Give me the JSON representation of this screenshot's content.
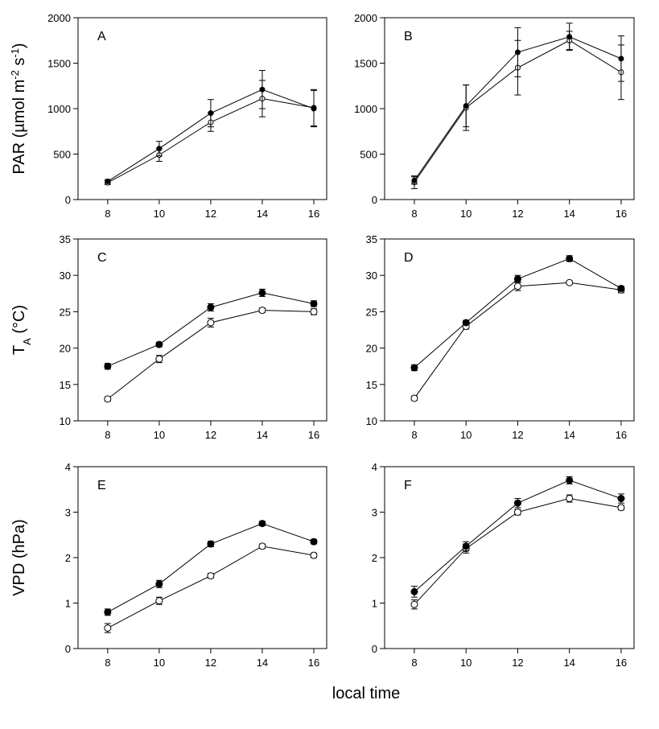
{
  "xlabel": "local time",
  "chart_data": [
    {
      "type": "line",
      "label": "A",
      "ylabel": [
        "PAR (µmol m",
        "-2",
        " s",
        "-1",
        ")"
      ],
      "ylabel_script": "super",
      "x": [
        8,
        10,
        12,
        14,
        16
      ],
      "xlim": [
        6.85,
        16.5
      ],
      "xticks": [
        8,
        10,
        12,
        14,
        16
      ],
      "ylim": [
        0,
        2000
      ],
      "yticks": [
        0,
        500,
        1000,
        1500,
        2000
      ],
      "series": [
        {
          "color": "#000000",
          "marker": "filled",
          "values": [
            200,
            560,
            950,
            1210,
            1000
          ],
          "errors": [
            20,
            80,
            150,
            210,
            200
          ]
        },
        {
          "color": "#000000",
          "marker": "open",
          "values": [
            185,
            490,
            850,
            1110,
            1010
          ],
          "errors": [
            20,
            70,
            100,
            200,
            200
          ]
        }
      ]
    },
    {
      "type": "line",
      "label": "B",
      "x": [
        8,
        10,
        12,
        14,
        16
      ],
      "xlim": [
        6.85,
        16.5
      ],
      "xticks": [
        8,
        10,
        12,
        14,
        16
      ],
      "ylim": [
        0,
        2000
      ],
      "yticks": [
        0,
        500,
        1000,
        1500,
        2000
      ],
      "series": [
        {
          "color": "#000000",
          "marker": "filled",
          "values": [
            210,
            1030,
            1620,
            1790,
            1550
          ],
          "errors": [
            40,
            230,
            270,
            150,
            250
          ]
        },
        {
          "color": "#000000",
          "marker": "open",
          "values": [
            190,
            1010,
            1450,
            1750,
            1400
          ],
          "errors": [
            70,
            250,
            300,
            100,
            300
          ]
        }
      ]
    },
    {
      "type": "line",
      "label": "C",
      "ylabel": [
        "T",
        "A",
        " (°C)"
      ],
      "ylabel_script": "sub",
      "x": [
        8,
        10,
        12,
        14,
        16
      ],
      "xlim": [
        6.85,
        16.5
      ],
      "xticks": [
        8,
        10,
        12,
        14,
        16
      ],
      "ylim": [
        10,
        35
      ],
      "yticks": [
        10,
        15,
        20,
        25,
        30,
        35
      ],
      "series": [
        {
          "color": "#000000",
          "marker": "filled",
          "values": [
            17.5,
            20.5,
            25.6,
            27.6,
            26.1
          ],
          "errors": [
            0.4,
            0.3,
            0.5,
            0.5,
            0.4
          ]
        },
        {
          "color": "#000000",
          "marker": "open",
          "values": [
            13.0,
            18.5,
            23.5,
            25.2,
            25.0
          ],
          "errors": [
            0.3,
            0.5,
            0.6,
            0.3,
            0.4
          ]
        }
      ]
    },
    {
      "type": "line",
      "label": "D",
      "x": [
        8,
        10,
        12,
        14,
        16
      ],
      "xlim": [
        6.85,
        16.5
      ],
      "xticks": [
        8,
        10,
        12,
        14,
        16
      ],
      "ylim": [
        10,
        35
      ],
      "yticks": [
        10,
        15,
        20,
        25,
        30,
        35
      ],
      "series": [
        {
          "color": "#000000",
          "marker": "filled",
          "values": [
            17.3,
            23.5,
            29.5,
            32.3,
            28.2
          ],
          "errors": [
            0.4,
            0.3,
            0.5,
            0.4,
            0.3
          ]
        },
        {
          "color": "#000000",
          "marker": "open",
          "values": [
            13.1,
            23.0,
            28.5,
            29.0,
            28.0
          ],
          "errors": [
            0.3,
            0.4,
            0.6,
            0.2,
            0.4
          ]
        }
      ]
    },
    {
      "type": "line",
      "label": "E",
      "ylabel": [
        "VPD (hPa)"
      ],
      "ylabel_script": "super",
      "x": [
        8,
        10,
        12,
        14,
        16
      ],
      "xlim": [
        6.85,
        16.5
      ],
      "xticks": [
        8,
        10,
        12,
        14,
        16
      ],
      "ylim": [
        0,
        4
      ],
      "yticks": [
        0,
        1,
        2,
        3,
        4
      ],
      "series": [
        {
          "color": "#000000",
          "marker": "filled",
          "values": [
            0.8,
            1.42,
            2.3,
            2.75,
            2.35
          ],
          "errors": [
            0.07,
            0.08,
            0.06,
            0.05,
            0.05
          ]
        },
        {
          "color": "#000000",
          "marker": "open",
          "values": [
            0.45,
            1.05,
            1.6,
            2.25,
            2.05
          ],
          "errors": [
            0.1,
            0.08,
            0.05,
            0.05,
            0.05
          ]
        }
      ]
    },
    {
      "type": "line",
      "label": "F",
      "x": [
        8,
        10,
        12,
        14,
        16
      ],
      "xlim": [
        6.85,
        16.5
      ],
      "xticks": [
        8,
        10,
        12,
        14,
        16
      ],
      "ylim": [
        0,
        4
      ],
      "yticks": [
        0,
        1,
        2,
        3,
        4
      ],
      "series": [
        {
          "color": "#000000",
          "marker": "filled",
          "values": [
            1.25,
            2.25,
            3.2,
            3.7,
            3.3
          ],
          "errors": [
            0.12,
            0.1,
            0.1,
            0.08,
            0.1
          ]
        },
        {
          "color": "#000000",
          "marker": "open",
          "values": [
            0.97,
            2.2,
            3.0,
            3.3,
            3.1
          ],
          "errors": [
            0.1,
            0.1,
            0.06,
            0.08,
            0.05
          ]
        }
      ]
    }
  ]
}
